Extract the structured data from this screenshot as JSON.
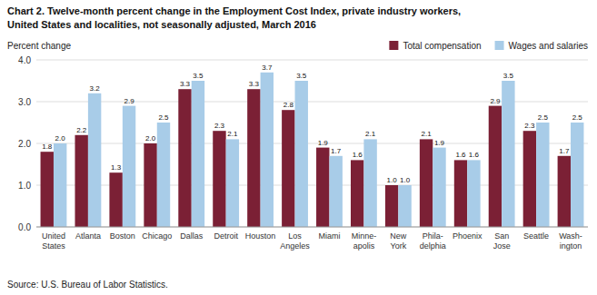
{
  "chart_data": {
    "type": "bar",
    "title": "Chart 2. Twelve-month percent change in the Employment Cost Index, private industry workers,",
    "subtitle": "United States and localities, not seasonally adjusted, March 2016",
    "y_label": "Percent change",
    "annotations": [
      "Source: U.S. Bureau of Labor Statistics."
    ],
    "categories": [
      "United\nStates",
      "Atlanta",
      "Boston",
      "Chicago",
      "Dallas",
      "Detroit",
      "Houston",
      "Los\nAngeles",
      "Miami",
      "Minne-\napolis",
      "New\nYork",
      "Phila-\ndelphia",
      "Phoenix",
      "San\nJose",
      "Seattle",
      "Wash-\nington"
    ],
    "series": [
      {
        "name": "Total compensation",
        "color": "#7b2035",
        "values": [
          1.8,
          2.2,
          1.3,
          2.0,
          3.3,
          2.3,
          3.3,
          2.8,
          1.9,
          1.6,
          1.0,
          2.1,
          1.6,
          2.9,
          2.3,
          1.7
        ],
        "value_labels": [
          "1.8",
          "2.2",
          "1.3",
          "2.0",
          "3.3",
          "2.3",
          "3.3",
          "2.8",
          "1.9",
          "1.6",
          "1.0",
          "2.1",
          "1.6",
          "2.9",
          "2.3",
          "1.7"
        ]
      },
      {
        "name": "Wages and salaries",
        "color": "#a8cce8",
        "values": [
          2.0,
          3.2,
          2.9,
          2.5,
          3.5,
          2.1,
          3.7,
          3.5,
          1.7,
          2.1,
          1.0,
          1.9,
          1.6,
          3.5,
          2.5,
          2.5
        ],
        "value_labels": [
          "2.0",
          "3.2",
          "2.9",
          "2.5",
          "3.5",
          "2.1",
          "3.7",
          "3.5",
          "1.7",
          "2.1",
          "1.0",
          "1.9",
          "1.6",
          "3.5",
          "2.5",
          "2.5"
        ]
      }
    ],
    "ylim": [
      0,
      4
    ],
    "yticks": [
      {
        "value": 0,
        "label": "0.0"
      },
      {
        "value": 1,
        "label": "1.0"
      },
      {
        "value": 2,
        "label": "2.0"
      },
      {
        "value": 3,
        "label": "3.0"
      },
      {
        "value": 4,
        "label": "4.0"
      }
    ],
    "grid": true,
    "legend": "upper right",
    "data_labels": true
  }
}
